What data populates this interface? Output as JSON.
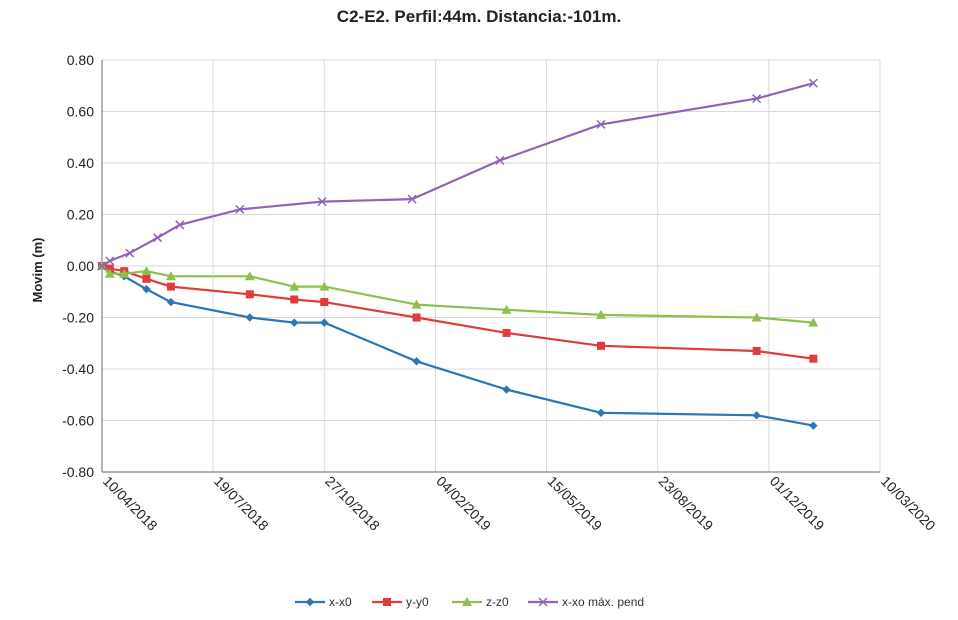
{
  "chart_data": {
    "type": "line",
    "title": "C2-E2. Perfil:44m. Distancia:-101m.",
    "xlabel": "",
    "ylabel": "Movim (m)",
    "ylim": [
      -0.8,
      0.8
    ],
    "yticks": [
      "0.80",
      "0.60",
      "0.40",
      "0.20",
      "0.00",
      "-0.20",
      "-0.40",
      "-0.60",
      "-0.80"
    ],
    "ytick_values": [
      0.8,
      0.6,
      0.4,
      0.2,
      0.0,
      -0.2,
      -0.4,
      -0.6,
      -0.8
    ],
    "xlim": [
      "2018-04-10",
      "2020-03-10"
    ],
    "xticks": [
      "10/04/2018",
      "19/07/2018",
      "27/10/2018",
      "04/02/2019",
      "15/05/2019",
      "23/08/2019",
      "01/12/2019",
      "10/03/2020"
    ],
    "xtick_dates": [
      "2018-04-10",
      "2018-07-19",
      "2018-10-27",
      "2019-02-04",
      "2019-05-15",
      "2019-08-23",
      "2019-12-01",
      "2020-03-10"
    ],
    "grid": true,
    "legend_position": "bottom",
    "x": [
      "2018-04-10",
      "2018-04-17",
      "2018-04-30",
      "2018-05-20",
      "2018-06-11",
      "2018-08-21",
      "2018-09-30",
      "2018-10-27",
      "2019-01-18",
      "2019-04-09",
      "2019-07-03",
      "2019-11-20",
      "2020-01-10"
    ],
    "series": [
      {
        "name": "x-x0",
        "color": "#2e75b6",
        "marker": "diamond",
        "x": [
          "2018-04-10",
          "2018-04-17",
          "2018-04-30",
          "2018-05-20",
          "2018-06-11",
          "2018-08-21",
          "2018-09-30",
          "2018-10-27",
          "2019-01-18",
          "2019-04-09",
          "2019-07-03",
          "2019-11-20",
          "2020-01-10"
        ],
        "values": [
          0.0,
          -0.02,
          -0.04,
          -0.09,
          -0.14,
          -0.2,
          -0.22,
          -0.22,
          -0.37,
          -0.48,
          -0.57,
          -0.58,
          -0.62
        ]
      },
      {
        "name": "y-y0",
        "color": "#e03c3c",
        "marker": "square",
        "x": [
          "2018-04-10",
          "2018-04-17",
          "2018-04-30",
          "2018-05-20",
          "2018-06-11",
          "2018-08-21",
          "2018-09-30",
          "2018-10-27",
          "2019-01-18",
          "2019-04-09",
          "2019-07-03",
          "2019-11-20",
          "2020-01-10"
        ],
        "values": [
          0.0,
          -0.01,
          -0.02,
          -0.05,
          -0.08,
          -0.11,
          -0.13,
          -0.14,
          -0.2,
          -0.26,
          -0.31,
          -0.33,
          -0.36
        ]
      },
      {
        "name": "z-z0",
        "color": "#8fc04d",
        "marker": "triangle",
        "x": [
          "2018-04-10",
          "2018-04-17",
          "2018-04-30",
          "2018-05-20",
          "2018-06-11",
          "2018-08-21",
          "2018-09-30",
          "2018-10-27",
          "2019-01-18",
          "2019-04-09",
          "2019-07-03",
          "2019-11-20",
          "2020-01-10"
        ],
        "values": [
          0.0,
          -0.03,
          -0.03,
          -0.02,
          -0.04,
          -0.04,
          -0.08,
          -0.08,
          -0.15,
          -0.17,
          -0.19,
          -0.2,
          -0.22
        ]
      },
      {
        "name": "x-xo máx. pend",
        "color": "#8e63b8",
        "marker": "x",
        "x": [
          "2018-04-10",
          "2018-04-17",
          "2018-05-05",
          "2018-05-30",
          "2018-06-19",
          "2018-08-12",
          "2018-10-25",
          "2019-01-14",
          "2019-04-03",
          "2019-07-03",
          "2019-11-20",
          "2020-01-10"
        ],
        "values": [
          0.0,
          0.02,
          0.05,
          0.11,
          0.16,
          0.22,
          0.25,
          0.26,
          0.41,
          0.55,
          0.65,
          0.71
        ]
      }
    ]
  }
}
